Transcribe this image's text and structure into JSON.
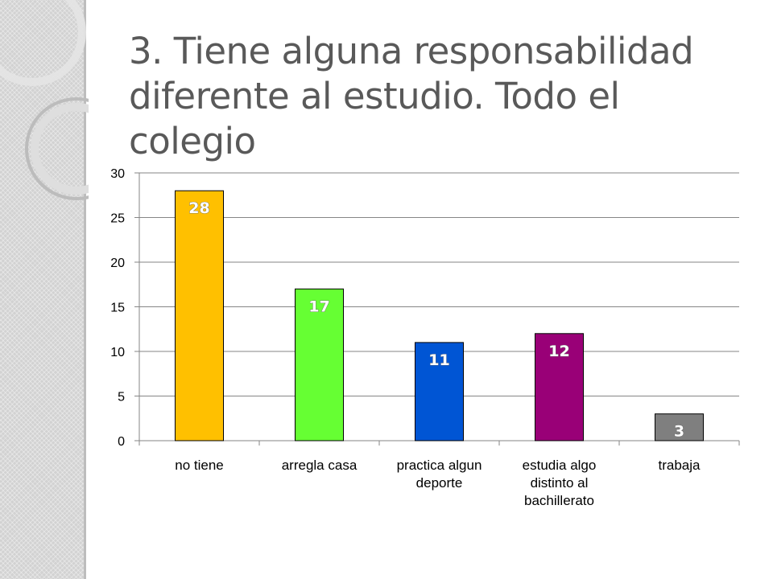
{
  "title_lines": [
    "3. Tiene alguna responsabilidad",
    "diferente al estudio. Todo el colegio"
  ],
  "chart_data": {
    "type": "bar",
    "categories": [
      [
        "no tiene"
      ],
      [
        "arregla casa"
      ],
      [
        "practica algun",
        "deporte"
      ],
      [
        "estudia algo",
        "distinto al",
        "bachillerato"
      ],
      [
        "trabaja"
      ]
    ],
    "values": [
      28,
      17,
      11,
      12,
      3
    ],
    "data_labels": [
      "28",
      "17",
      "11",
      "12",
      "3"
    ],
    "colors": [
      "#ffc000",
      "#66ff33",
      "#0055d4",
      "#990077",
      "#7f7f7f"
    ],
    "ylim": [
      0,
      30
    ],
    "yticks": [
      0,
      5,
      10,
      15,
      20,
      25,
      30
    ],
    "grid": true,
    "legend": "none"
  }
}
